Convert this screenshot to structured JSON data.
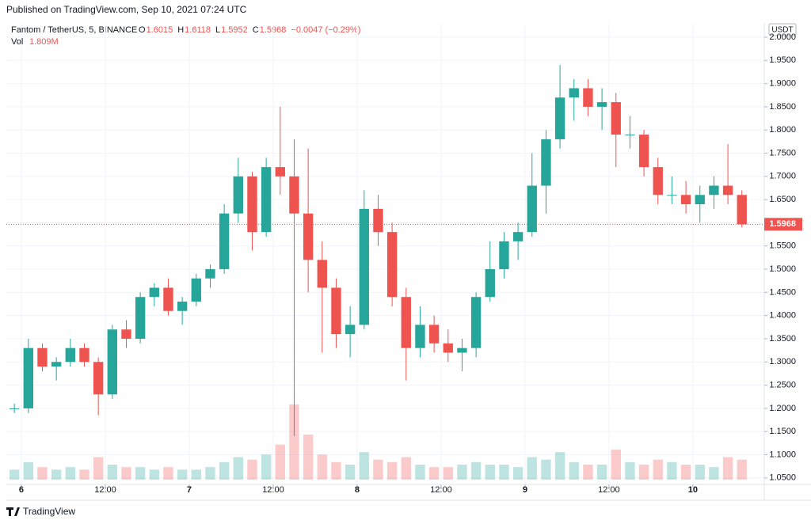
{
  "header": {
    "published": "Published on TradingView.com, Sep 10, 2021 07:24 UTC",
    "footer": "TradingView"
  },
  "chart_data": {
    "type": "candlestick",
    "symbol": "Fantom / TetherUS, 5, BINANCE",
    "ohlc_legend": [
      {
        "label": "O",
        "value": "1.6015"
      },
      {
        "label": "H",
        "value": "1.6118"
      },
      {
        "label": "L",
        "value": "1.5952"
      },
      {
        "label": "C",
        "value": "1.5968"
      }
    ],
    "change": "−0.0047 (−0.29%)",
    "volume_label": "Vol",
    "volume_value": "1.809M",
    "currency": "USDT",
    "last_price": 1.5968,
    "up_color": "#26a69a",
    "down_color": "#ef5350",
    "x": [
      -1,
      1,
      3,
      5,
      7,
      9,
      11,
      13,
      15,
      17,
      19,
      21,
      23,
      25,
      27,
      29,
      31,
      33,
      35,
      37,
      39,
      41,
      43,
      45,
      47,
      49,
      51,
      53,
      55,
      57,
      59,
      61,
      63,
      65,
      67,
      69,
      71,
      73,
      75,
      77,
      79,
      81,
      83,
      85,
      87,
      89,
      91,
      93,
      95,
      97,
      99,
      101,
      103
    ],
    "open": [
      1.2,
      1.2,
      1.33,
      1.29,
      1.3,
      1.33,
      1.3,
      1.23,
      1.37,
      1.35,
      1.44,
      1.46,
      1.41,
      1.43,
      1.48,
      1.5,
      1.62,
      1.7,
      1.58,
      1.72,
      1.7,
      1.62,
      1.52,
      1.46,
      1.36,
      1.38,
      1.63,
      1.58,
      1.44,
      1.33,
      1.38,
      1.34,
      1.32,
      1.33,
      1.44,
      1.5,
      1.56,
      1.58,
      1.68,
      1.78,
      1.87,
      1.89,
      1.85,
      1.86,
      1.79,
      1.79,
      1.72,
      1.66,
      1.66,
      1.64,
      1.66,
      1.68,
      1.66
    ],
    "high": [
      1.21,
      1.35,
      1.34,
      1.31,
      1.35,
      1.34,
      1.31,
      1.38,
      1.39,
      1.45,
      1.47,
      1.48,
      1.44,
      1.49,
      1.51,
      1.64,
      1.74,
      1.71,
      1.74,
      1.85,
      1.78,
      1.76,
      1.56,
      1.48,
      1.42,
      1.67,
      1.66,
      1.6,
      1.46,
      1.42,
      1.4,
      1.37,
      1.35,
      1.45,
      1.56,
      1.58,
      1.6,
      1.75,
      1.8,
      1.94,
      1.91,
      1.91,
      1.89,
      1.88,
      1.83,
      1.8,
      1.74,
      1.7,
      1.69,
      1.68,
      1.7,
      1.77,
      1.67
    ],
    "low": [
      1.19,
      1.19,
      1.28,
      1.26,
      1.29,
      1.29,
      1.185,
      1.22,
      1.33,
      1.34,
      1.42,
      1.4,
      1.38,
      1.42,
      1.46,
      1.49,
      1.6,
      1.54,
      1.57,
      1.66,
      1.14,
      1.45,
      1.32,
      1.33,
      1.31,
      1.37,
      1.55,
      1.42,
      1.26,
      1.31,
      1.32,
      1.3,
      1.28,
      1.31,
      1.43,
      1.48,
      1.52,
      1.57,
      1.62,
      1.76,
      1.82,
      1.83,
      1.8,
      1.72,
      1.76,
      1.7,
      1.64,
      1.64,
      1.62,
      1.6,
      1.63,
      1.64,
      1.59
    ],
    "close": [
      1.2,
      1.33,
      1.29,
      1.3,
      1.33,
      1.3,
      1.23,
      1.37,
      1.35,
      1.44,
      1.46,
      1.41,
      1.43,
      1.48,
      1.5,
      1.62,
      1.7,
      1.58,
      1.72,
      1.7,
      1.62,
      1.52,
      1.46,
      1.36,
      1.38,
      1.63,
      1.58,
      1.44,
      1.33,
      1.38,
      1.34,
      1.32,
      1.33,
      1.44,
      1.5,
      1.56,
      1.58,
      1.68,
      1.78,
      1.87,
      1.89,
      1.85,
      1.86,
      1.79,
      1.79,
      1.72,
      1.66,
      1.66,
      1.64,
      1.66,
      1.68,
      1.66,
      1.5968
    ],
    "volume": [
      4,
      7,
      5,
      4,
      5,
      4,
      9,
      6,
      5,
      5,
      4,
      5,
      4,
      4,
      5,
      7,
      9,
      8,
      10,
      14,
      30,
      18,
      10,
      7,
      6,
      11,
      8,
      7,
      9,
      6,
      5,
      5,
      6,
      7,
      6,
      6,
      5,
      9,
      8,
      11,
      7,
      6,
      6,
      12,
      7,
      6,
      8,
      7,
      6,
      6,
      5,
      9,
      8
    ],
    "xlim": [
      -2.15,
      106.2
    ],
    "ylim": [
      1.036,
      2.029
    ],
    "xticks": [
      {
        "value": 0,
        "label": "6"
      },
      {
        "value": 12,
        "label": "12:00"
      },
      {
        "value": 24,
        "label": "7"
      },
      {
        "value": 36,
        "label": "12:00"
      },
      {
        "value": 48,
        "label": "8"
      },
      {
        "value": 60,
        "label": "12:00"
      },
      {
        "value": 72,
        "label": "9"
      },
      {
        "value": 84,
        "label": "12:00"
      },
      {
        "value": 96,
        "label": "10"
      }
    ],
    "yticks": [
      {
        "value": 1.05,
        "label": "1.0500"
      },
      {
        "value": 1.1,
        "label": "1.1000"
      },
      {
        "value": 1.15,
        "label": "1.1500"
      },
      {
        "value": 1.2,
        "label": "1.2000"
      },
      {
        "value": 1.25,
        "label": "1.2500"
      },
      {
        "value": 1.3,
        "label": "1.3000"
      },
      {
        "value": 1.35,
        "label": "1.3500"
      },
      {
        "value": 1.4,
        "label": "1.4000"
      },
      {
        "value": 1.45,
        "label": "1.4500"
      },
      {
        "value": 1.5,
        "label": "1.5000"
      },
      {
        "value": 1.55,
        "label": "1.5500"
      },
      {
        "value": 1.6,
        "label": "1.6000"
      },
      {
        "value": 1.65,
        "label": "1.6500"
      },
      {
        "value": 1.7,
        "label": "1.7000"
      },
      {
        "value": 1.75,
        "label": "1.7500"
      },
      {
        "value": 1.8,
        "label": "1.8000"
      },
      {
        "value": 1.85,
        "label": "1.8500"
      },
      {
        "value": 1.9,
        "label": "1.9000"
      },
      {
        "value": 1.95,
        "label": "1.9500"
      },
      {
        "value": 2.0,
        "label": "2.0000"
      }
    ],
    "grid": true
  }
}
